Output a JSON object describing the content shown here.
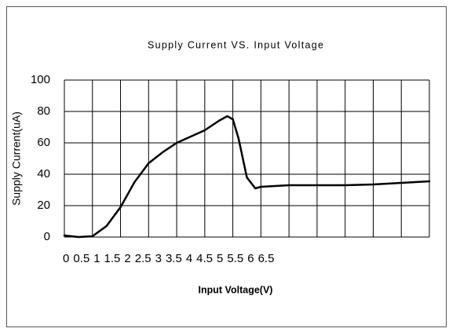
{
  "chart_data": {
    "type": "line",
    "title": "Supply Current VS. Input Voltage",
    "x_label": "Input Voltage(V)",
    "y_label": "Supply Current(uA)",
    "x": [
      0,
      0.25,
      0.5,
      0.75,
      1,
      1.25,
      1.5,
      1.75,
      2,
      2.25,
      2.5,
      2.75,
      2.9,
      3,
      3.1,
      3.25,
      3.4,
      3.5,
      4,
      4.5,
      5,
      5.5,
      6,
      6.5
    ],
    "series": [
      {
        "name": "Supply Current",
        "color": "#000000",
        "values": [
          1,
          0,
          0.5,
          7,
          19,
          35,
          47,
          54,
          60,
          64,
          68,
          74,
          77,
          75,
          63,
          38,
          31,
          32,
          33,
          33,
          33,
          33.5,
          34.5,
          35.5
        ]
      }
    ],
    "xlim": [
      0,
      6.5
    ],
    "xticks": [
      0,
      0.5,
      1,
      1.5,
      2,
      2.5,
      3,
      3.5,
      4,
      4.5,
      5,
      5.5,
      6,
      6.5
    ],
    "ylim": [
      0,
      100
    ],
    "yticks": [
      0,
      20,
      40,
      60,
      80,
      100
    ],
    "grid": true
  }
}
